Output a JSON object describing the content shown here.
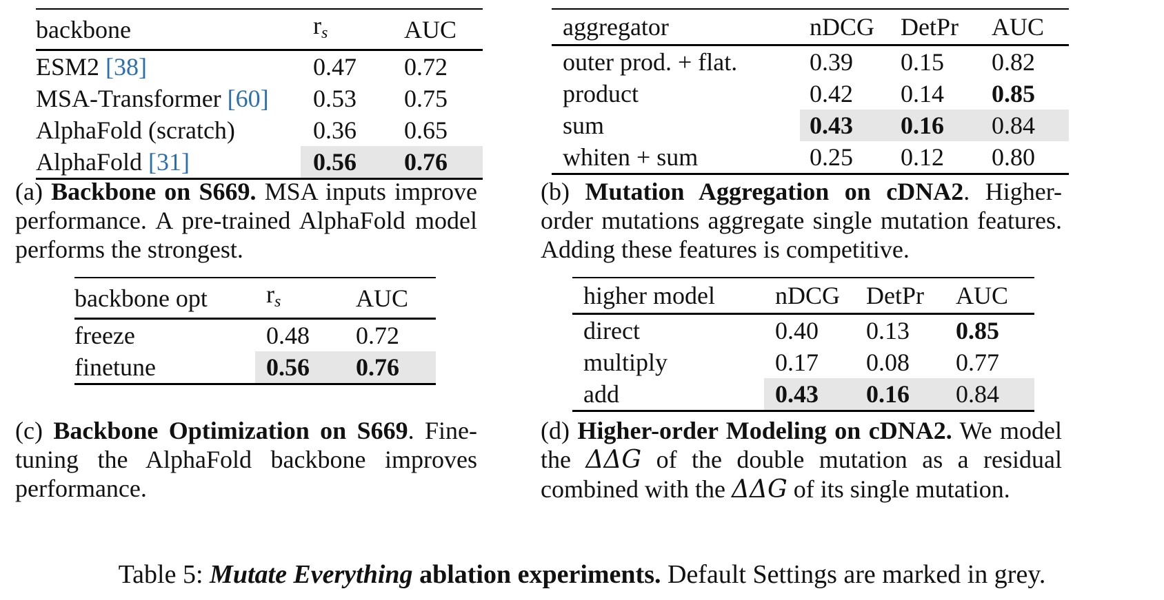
{
  "table_a": {
    "headers": [
      "backbone",
      "r",
      "AUC"
    ],
    "r_subscript": "s",
    "rows": [
      {
        "name": "ESM2 ",
        "cite": "[38]",
        "rs": "0.47",
        "auc": "0.72"
      },
      {
        "name": "MSA-Transformer ",
        "cite": "[60]",
        "rs": "0.53",
        "auc": "0.75"
      },
      {
        "name": "AlphaFold (scratch)",
        "cite": "",
        "rs": "0.36",
        "auc": "0.65"
      },
      {
        "name": "AlphaFold ",
        "cite": "[31]",
        "rs": "0.56",
        "auc": "0.76"
      }
    ]
  },
  "caption_a": {
    "label": "(a) ",
    "bold": "Backbone on S669.",
    "text": " MSA inputs improve performance. A pre-trained AlphaFold model performs the strongest."
  },
  "table_b": {
    "headers": [
      "aggregator",
      "nDCG",
      "DetPr",
      "AUC"
    ],
    "rows": [
      {
        "name": "outer prod. + flat.",
        "ndcg": "0.39",
        "detpr": "0.15",
        "auc": "0.82"
      },
      {
        "name": "product",
        "ndcg": "0.42",
        "detpr": "0.14",
        "auc": "0.85"
      },
      {
        "name": "sum",
        "ndcg": "0.43",
        "detpr": "0.16",
        "auc": "0.84"
      },
      {
        "name": "whiten + sum",
        "ndcg": "0.25",
        "detpr": "0.12",
        "auc": "0.80"
      }
    ]
  },
  "caption_b": {
    "label": "(b) ",
    "bold": "Mutation Aggregation on cDNA2",
    "text": ". Higher-order mutations aggregate single mutation features. Adding these features is competitive."
  },
  "table_c": {
    "headers": [
      "backbone opt",
      "r",
      "AUC"
    ],
    "r_subscript": "s",
    "rows": [
      {
        "name": "freeze",
        "rs": "0.48",
        "auc": "0.72"
      },
      {
        "name": "finetune",
        "rs": "0.56",
        "auc": "0.76"
      }
    ]
  },
  "caption_c": {
    "label": "(c) ",
    "bold": "Backbone Optimization on S669",
    "text": ". Fine-tuning the AlphaFold backbone improves performance."
  },
  "table_d": {
    "headers": [
      "higher model",
      "nDCG",
      "DetPr",
      "AUC"
    ],
    "rows": [
      {
        "name": "direct",
        "ndcg": "0.40",
        "detpr": "0.13",
        "auc": "0.85"
      },
      {
        "name": "multiply",
        "ndcg": "0.17",
        "detpr": "0.08",
        "auc": "0.77"
      },
      {
        "name": "add",
        "ndcg": "0.43",
        "detpr": "0.16",
        "auc": "0.84"
      }
    ]
  },
  "caption_d": {
    "label": "(d) ",
    "bold": "Higher-order Modeling on cDNA2.",
    "text1": " We model the ",
    "math1": "ΔΔG",
    "text2": " of the double mutation as a residual combined with the ",
    "math2": "ΔΔG",
    "text3": " of its single mutation."
  },
  "main_caption": {
    "label": "Table 5: ",
    "italic": "Mutate Everything",
    "bold": " ablation experiments.",
    "text": " Default Settings are marked in grey."
  }
}
